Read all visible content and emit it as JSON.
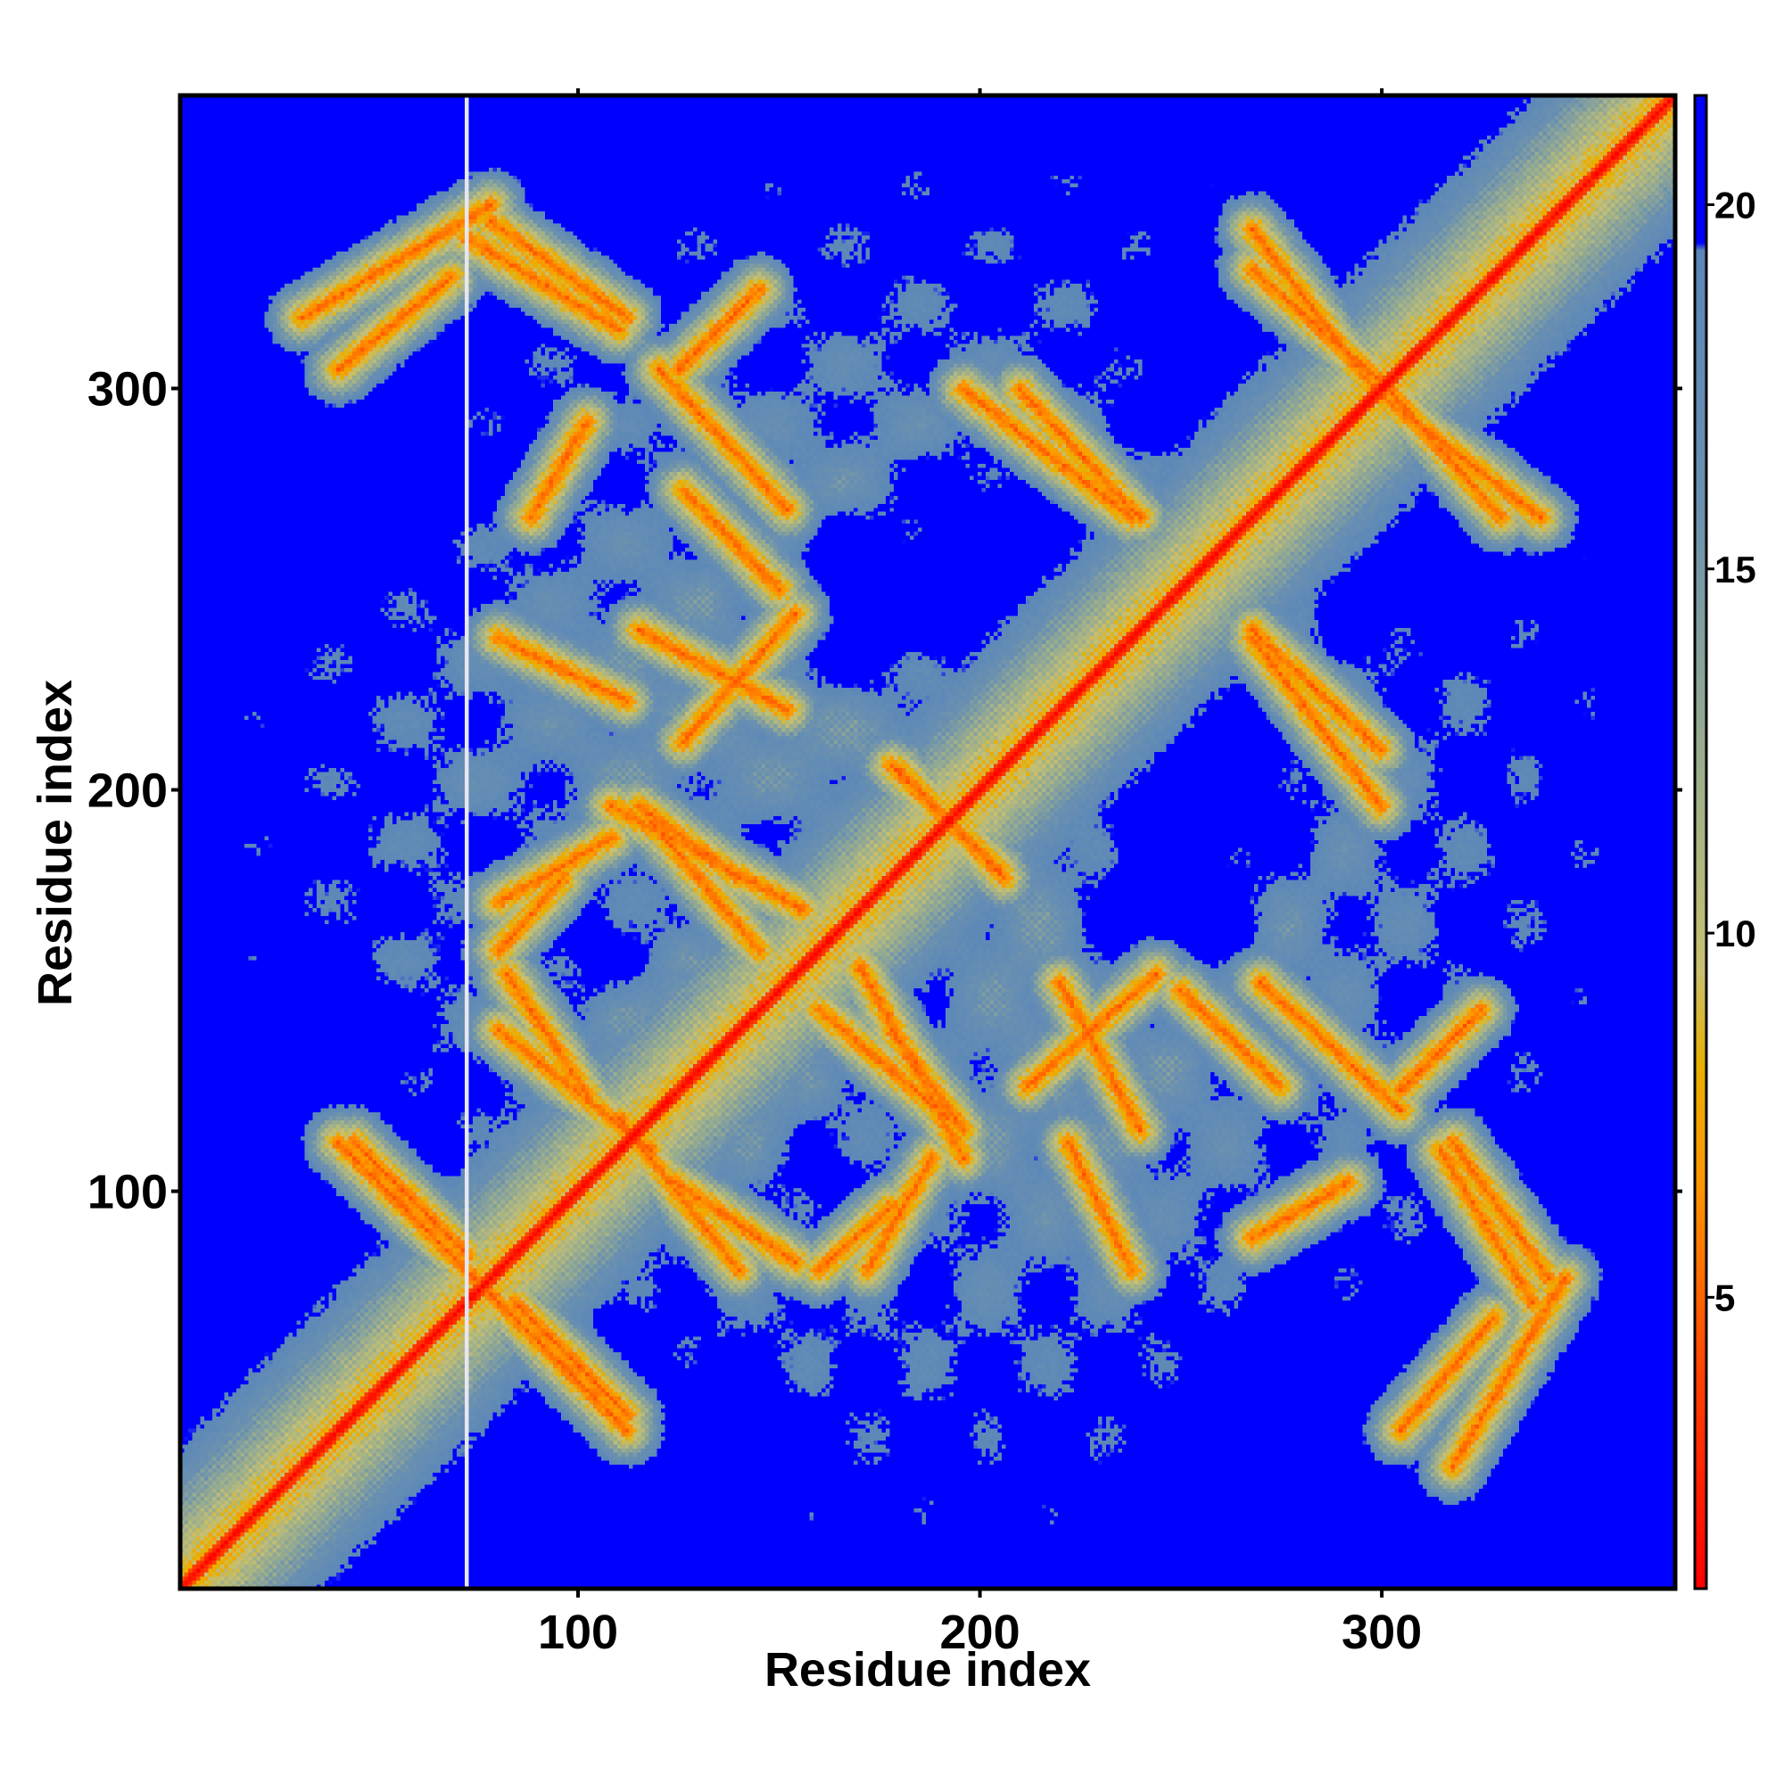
{
  "chart_data": {
    "type": "heatmap",
    "title": "",
    "xlabel": "Residue index",
    "ylabel": "Residue index",
    "x_range": [
      1,
      373
    ],
    "y_range": [
      1,
      373
    ],
    "x_ticks": [
      100,
      200,
      300
    ],
    "y_ticks": [
      100,
      200,
      300
    ],
    "x_tick_labels": [
      "100",
      "200",
      "300"
    ],
    "y_tick_labels": [
      "100",
      "200",
      "300"
    ],
    "value_range": [
      1,
      21.5
    ],
    "colorbar_ticks": [
      5,
      10,
      15,
      20
    ],
    "colorbar_tick_labels": [
      "5",
      "10",
      "15",
      "20"
    ],
    "colormap": [
      {
        "value": 1,
        "color": "#ff0000"
      },
      {
        "value": 4,
        "color": "#ff4500"
      },
      {
        "value": 6.5,
        "color": "#ff9500"
      },
      {
        "value": 8.2,
        "color": "#e8b000"
      },
      {
        "value": 9.5,
        "color": "#c8c070"
      },
      {
        "value": 12,
        "color": "#9fb08a"
      },
      {
        "value": 16,
        "color": "#6a90b0"
      },
      {
        "value": 19.4,
        "color": "#5b87b9"
      },
      {
        "value": 19.5,
        "color": "#0000ff"
      },
      {
        "value": 21.5,
        "color": "#0000ff"
      }
    ],
    "cutoff_color": "#0000ff",
    "structure": {
      "diagonal": true,
      "off_diagonal_contact_bands": [
        {
          "start": [
            31,
            318
          ],
          "end": [
            78,
            346
          ]
        },
        {
          "start": [
            78,
            342
          ],
          "end": [
            112,
            318
          ]
        },
        {
          "start": [
            80,
            238
          ],
          "end": [
            112,
            222
          ]
        },
        {
          "start": [
            126,
            275
          ],
          "end": [
            150,
            250
          ]
        },
        {
          "start": [
            115,
            240
          ],
          "end": [
            152,
            220
          ]
        },
        {
          "start": [
            196,
            300
          ],
          "end": [
            238,
            268
          ]
        },
        {
          "start": [
            268,
            330
          ],
          "end": [
            300,
            302
          ]
        },
        {
          "start": [
            298,
            300
          ],
          "end": [
            340,
            268
          ]
        },
        {
          "start": [
            268,
            240
          ],
          "end": [
            300,
            210
          ]
        },
        {
          "start": [
            108,
            196
          ],
          "end": [
            156,
            170
          ]
        },
        {
          "start": [
            115,
            196
          ],
          "end": [
            140,
            178
          ]
        },
        {
          "start": [
            178,
            206
          ],
          "end": [
            205,
            180
          ]
        },
        {
          "start": [
            80,
            172
          ],
          "end": [
            108,
            188
          ]
        },
        {
          "start": [
            80,
            140
          ],
          "end": [
            118,
            110
          ]
        },
        {
          "start": [
            160,
            145
          ],
          "end": [
            192,
            118
          ]
        },
        {
          "start": [
            212,
            126
          ],
          "end": [
            244,
            154
          ]
        },
        {
          "start": [
            270,
            152
          ],
          "end": [
            305,
            120
          ]
        },
        {
          "start": [
            305,
            125
          ],
          "end": [
            325,
            145
          ]
        },
        {
          "start": [
            44,
            112
          ],
          "end": [
            72,
            84
          ]
        },
        {
          "start": [
            78,
            74
          ],
          "end": [
            112,
            40
          ]
        },
        {
          "start": [
            124,
            102
          ],
          "end": [
            154,
            82
          ]
        },
        {
          "start": [
            160,
            80
          ],
          "end": [
            178,
            96
          ]
        },
        {
          "start": [
            268,
            88
          ],
          "end": [
            292,
            102
          ]
        },
        {
          "start": [
            305,
            40
          ],
          "end": [
            328,
            68
          ]
        },
        {
          "start": [
            315,
            110
          ],
          "end": [
            338,
            72
          ]
        }
      ]
    }
  }
}
